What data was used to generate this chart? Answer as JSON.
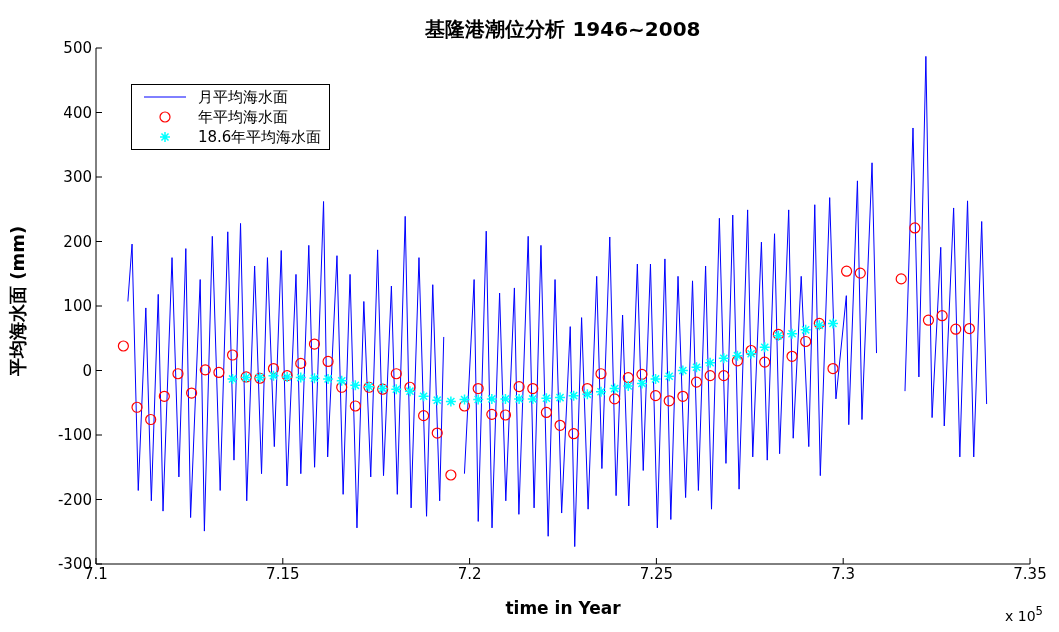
{
  "chart_data": {
    "type": "line",
    "title": "基隆港潮位分析 1946~2008",
    "xlabel": "time in Year",
    "ylabel": "平均海水面 (mm)",
    "annotations": [
      "x 10$^{5}$"
    ],
    "xlim": [
      7.1,
      7.35
    ],
    "ylim": [
      -300,
      500
    ],
    "xticks": [
      7.1,
      7.15,
      7.2,
      7.25,
      7.3,
      7.35
    ],
    "yticks": [
      -300,
      -200,
      -100,
      0,
      100,
      200,
      300,
      400,
      500
    ],
    "legend": "top left",
    "series": [
      {
        "name": "月平均海水面",
        "color": "#0000ff",
        "marker": "none",
        "line_style": "solid",
        "x": [
          7.10853,
          7.10965,
          7.11131,
          7.11334,
          7.11481,
          7.11666,
          7.11794,
          7.12035,
          7.12219,
          7.12404,
          7.12532,
          7.12789,
          7.12901,
          7.13113,
          7.13324,
          7.13527,
          7.13693,
          7.13869,
          7.14035,
          7.14246,
          7.14431,
          7.14589,
          7.14773,
          7.14958,
          7.15113,
          7.15353,
          7.15482,
          7.15696,
          7.15851,
          7.16091,
          7.16201,
          7.1645,
          7.16615,
          7.168,
          7.16985,
          7.17169,
          7.17354,
          7.17538,
          7.17696,
          7.17907,
          7.18065,
          7.18276,
          7.18434,
          7.18645,
          7.18848,
          7.19014,
          7.19199,
          7.19308,
          7.195,
          7.19862,
          7.20121,
          7.20231,
          7.20445,
          7.206,
          7.20803,
          7.20969,
          7.21199,
          7.21319,
          7.21568,
          7.21726,
          7.2191,
          7.22103,
          7.22287,
          7.22464,
          7.22694,
          7.22814,
          7.22998,
          7.23172,
          7.23402,
          7.23541,
          7.23752,
          7.23921,
          7.24095,
          7.2426,
          7.2449,
          7.24648,
          7.24841,
          7.25025,
          7.25228,
          7.25386,
          7.25579,
          7.25782,
          7.25967,
          7.26124,
          7.26317,
          7.26475,
          7.26686,
          7.26862,
          7.27044,
          7.27213,
          7.27442,
          7.27579,
          7.27811,
          7.27967,
          7.28162,
          7.28298,
          7.28541,
          7.28662,
          7.28876,
          7.29079,
          7.29239,
          7.29387,
          7.29638,
          7.29806,
          7.30084,
          7.30149,
          7.30381,
          7.30502,
          7.30772,
          7.30892,
          7.313,
          7.31654,
          7.31868,
          7.32026,
          7.32213,
          7.32379,
          7.32611,
          7.32705,
          7.32956,
          7.33122,
          7.33328,
          7.33494,
          7.33707,
          7.33839
        ],
        "values": [
          107,
          196,
          -186,
          97,
          -202,
          118,
          -218,
          175,
          -165,
          189,
          -228,
          141,
          -249,
          208,
          -186,
          215,
          -139,
          228,
          -202,
          162,
          -160,
          175,
          -118,
          186,
          -179,
          149,
          -160,
          194,
          -150,
          262,
          -134,
          178,
          -192,
          149,
          -244,
          107,
          -165,
          187,
          -163,
          131,
          -192,
          239,
          -213,
          175,
          -226,
          133,
          -202,
          52,
          null,
          -160,
          141,
          -234,
          216,
          -244,
          120,
          -202,
          128,
          -223,
          208,
          -213,
          194,
          -257,
          141,
          -221,
          68,
          -273,
          82,
          -215,
          146,
          -152,
          207,
          -194,
          86,
          -210,
          165,
          -155,
          165,
          -244,
          173,
          -231,
          146,
          -197,
          139,
          -186,
          162,
          -215,
          236,
          -144,
          241,
          -184,
          249,
          -134,
          199,
          -139,
          212,
          -129,
          249,
          -105,
          146,
          -118,
          257,
          -163,
          268,
          -44,
          116,
          -84,
          294,
          -76,
          322,
          27,
          null,
          -32,
          376,
          -10,
          487,
          -73,
          191,
          -86,
          252,
          -134,
          263,
          -134,
          231,
          -52
        ]
      },
      {
        "name": "年平均海水面",
        "type": "scatter",
        "color": "#ff0000",
        "marker": "circle",
        "x": [
          7.10733,
          7.11098,
          7.11464,
          7.11829,
          7.12194,
          7.12559,
          7.12925,
          7.1329,
          7.13655,
          7.1402,
          7.14386,
          7.14751,
          7.15116,
          7.15481,
          7.15847,
          7.16212,
          7.16577,
          7.16942,
          7.17308,
          7.17673,
          7.18038,
          7.18403,
          7.18769,
          7.19134,
          7.19499,
          7.19864,
          7.2023,
          7.20595,
          7.2096,
          7.21325,
          7.21691,
          7.22056,
          7.22421,
          7.22786,
          7.23152,
          7.23517,
          7.23882,
          7.24247,
          7.24613,
          7.24978,
          7.25343,
          7.25708,
          7.26074,
          7.26439,
          7.26804,
          7.27169,
          7.27535,
          7.279,
          7.28265,
          7.2863,
          7.28996,
          7.29361,
          7.29726,
          7.30091,
          7.30457,
          7.31552,
          7.31917,
          7.32282,
          7.32648,
          7.33013,
          7.33378
        ],
        "values": [
          38,
          -57,
          -76,
          -40,
          -5,
          -35,
          1,
          -3,
          24,
          -10,
          -12,
          3,
          -8,
          11,
          41,
          14,
          -26,
          -55,
          -26,
          -29,
          -5,
          -26,
          -70,
          -97,
          -162,
          -55,
          -28,
          -68,
          -69,
          -25,
          -28,
          -65,
          -85,
          -98,
          -28,
          -5,
          -44,
          -11,
          -6,
          -39,
          -47,
          -40,
          -18,
          -8,
          -8,
          15,
          31,
          13,
          56,
          22,
          45,
          73,
          3,
          154,
          151,
          142,
          221,
          78,
          85,
          64,
          65
        ]
      },
      {
        "name": "18.6年平均海水面",
        "type": "scatter",
        "color": "#00ffff",
        "marker": "cross",
        "x": [
          7.13655,
          7.1402,
          7.14386,
          7.14751,
          7.15116,
          7.15481,
          7.15847,
          7.16212,
          7.16577,
          7.16942,
          7.17308,
          7.17673,
          7.18038,
          7.18403,
          7.18769,
          7.19134,
          7.19499,
          7.19864,
          7.2023,
          7.20595,
          7.2096,
          7.21325,
          7.21691,
          7.22056,
          7.22421,
          7.22786,
          7.23152,
          7.23517,
          7.23882,
          7.24247,
          7.24613,
          7.24978,
          7.25343,
          7.25708,
          7.26074,
          7.26439,
          7.26804,
          7.27169,
          7.27535,
          7.279,
          7.28265,
          7.2863,
          7.28996,
          7.29361,
          7.29726
        ],
        "values": [
          -13,
          -11,
          -11,
          -8,
          -10,
          -11,
          -12,
          -13,
          -16,
          -23,
          -25,
          -28,
          -29,
          -32,
          -40,
          -46,
          -48,
          -45,
          -45,
          -44,
          -44,
          -44,
          -44,
          -43,
          -42,
          -39,
          -37,
          -33,
          -28,
          -24,
          -20,
          -13,
          -9,
          0,
          5,
          12,
          19,
          23,
          26,
          36,
          54,
          57,
          63,
          70,
          73
        ]
      }
    ]
  }
}
